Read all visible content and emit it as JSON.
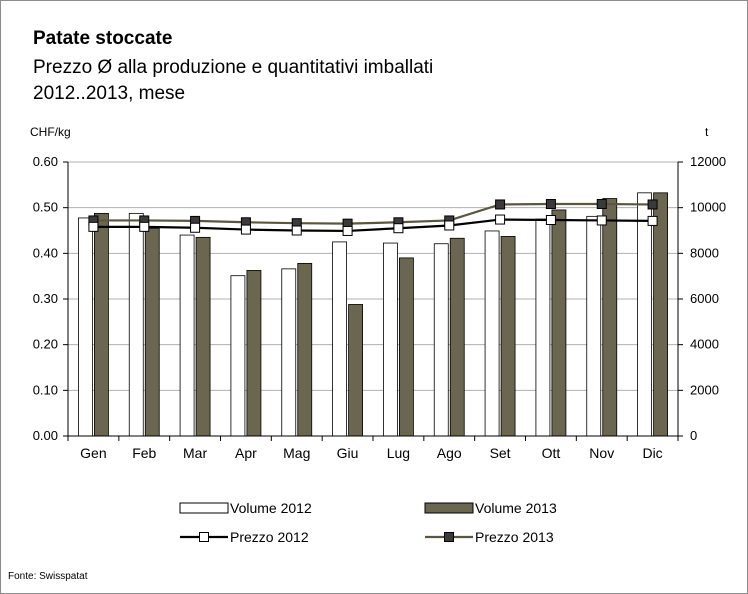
{
  "title": "Patate stoccate",
  "subtitle_line1": "Prezzo Ø alla produzione e quantitativi imballati",
  "subtitle_line2": "2012..2013, mese",
  "source": "Fonte: Swisspatat",
  "chart_data": {
    "type": "bar",
    "categories": [
      "Gen",
      "Feb",
      "Mar",
      "Apr",
      "Mag",
      "Giu",
      "Lug",
      "Ago",
      "Set",
      "Ott",
      "Nov",
      "Dic"
    ],
    "y_left": {
      "label": "CHF/kg",
      "range": [
        0,
        0.6
      ],
      "ticks": [
        "0.00",
        "0.10",
        "0.20",
        "0.30",
        "0.40",
        "0.50",
        "0.60"
      ]
    },
    "y_right": {
      "label": "t",
      "range": [
        0,
        12000
      ],
      "ticks": [
        "0",
        "2000",
        "4000",
        "6000",
        "8000",
        "10000",
        "12000"
      ]
    },
    "grid": true,
    "legend_position": "bottom",
    "series": [
      {
        "name": "Volume 2012",
        "kind": "bar",
        "axis": "right",
        "color": "#ffffff",
        "values": [
          9550,
          9750,
          8800,
          7020,
          7320,
          8500,
          8450,
          8420,
          8980,
          9500,
          9620,
          10650
        ]
      },
      {
        "name": "Volume 2013",
        "kind": "bar",
        "axis": "right",
        "color": "#6b6650",
        "values": [
          9750,
          9100,
          8700,
          7250,
          7560,
          5760,
          7800,
          8660,
          8740,
          9900,
          10400,
          10650
        ]
      },
      {
        "name": "Prezzo 2012",
        "kind": "line",
        "axis": "left",
        "color": "#000000",
        "marker": "#ffffff",
        "values": [
          0.458,
          0.458,
          0.456,
          0.452,
          0.45,
          0.449,
          0.455,
          0.461,
          0.474,
          0.473,
          0.472,
          0.471
        ]
      },
      {
        "name": "Prezzo 2013",
        "kind": "line",
        "axis": "left",
        "color": "#5a5640",
        "marker": "#3a3a3a",
        "values": [
          0.472,
          0.472,
          0.471,
          0.468,
          0.466,
          0.465,
          0.468,
          0.472,
          0.507,
          0.508,
          0.508,
          0.507
        ]
      }
    ]
  }
}
